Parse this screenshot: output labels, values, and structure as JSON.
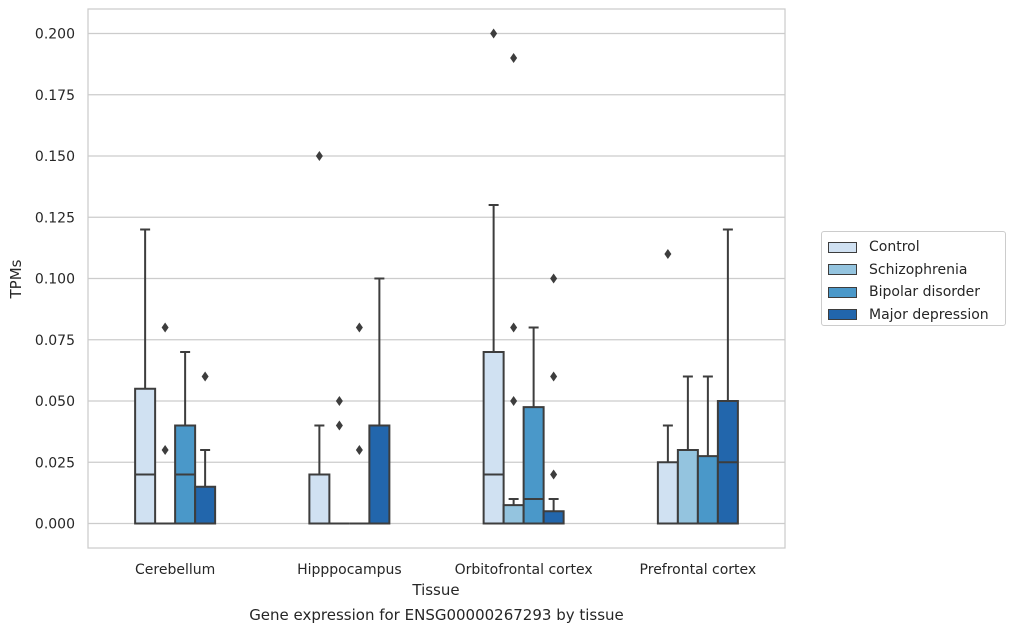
{
  "chart_data": {
    "type": "boxplot",
    "title": "Gene expression for ENSG00000267293 by tissue",
    "xlabel": "Tissue",
    "ylabel": "TPMs",
    "ylim": [
      -0.01,
      0.21
    ],
    "yticks": [
      "0.000",
      "0.025",
      "0.050",
      "0.075",
      "0.100",
      "0.125",
      "0.150",
      "0.175",
      "0.200"
    ],
    "grid": true,
    "legend_position": "right",
    "categories": [
      "Cerebellum",
      "Hipppocampus",
      "Orbitofrontal cortex",
      "Prefrontal cortex"
    ],
    "series": [
      {
        "name": "Control",
        "color": "#d0e1f2",
        "boxes": [
          {
            "q1": 0.0,
            "median": 0.02,
            "q3": 0.055,
            "whisker_low": 0.0,
            "whisker_high": 0.12,
            "outliers": []
          },
          {
            "q1": 0.0,
            "median": 0.0,
            "q3": 0.02,
            "whisker_low": 0.0,
            "whisker_high": 0.04,
            "outliers": [
              0.15
            ]
          },
          {
            "q1": 0.0,
            "median": 0.02,
            "q3": 0.07,
            "whisker_low": 0.0,
            "whisker_high": 0.13,
            "outliers": [
              0.2
            ]
          },
          {
            "q1": 0.0,
            "median": 0.0,
            "q3": 0.025,
            "whisker_low": 0.0,
            "whisker_high": 0.04,
            "outliers": [
              0.11
            ]
          }
        ]
      },
      {
        "name": "Schizophrenia",
        "color": "#94c4df",
        "boxes": [
          {
            "q1": 0.0,
            "median": 0.0,
            "q3": 0.0,
            "whisker_low": 0.0,
            "whisker_high": 0.0,
            "outliers": [
              0.03,
              0.08
            ]
          },
          {
            "q1": 0.0,
            "median": 0.0,
            "q3": 0.0,
            "whisker_low": 0.0,
            "whisker_high": 0.0,
            "outliers": [
              0.04,
              0.05
            ]
          },
          {
            "q1": 0.0,
            "median": 0.0,
            "q3": 0.0075,
            "whisker_low": 0.0,
            "whisker_high": 0.01,
            "outliers": [
              0.05,
              0.08,
              0.19
            ]
          },
          {
            "q1": 0.0,
            "median": 0.0,
            "q3": 0.03,
            "whisker_low": 0.0,
            "whisker_high": 0.06,
            "outliers": []
          }
        ]
      },
      {
        "name": "Bipolar disorder",
        "color": "#4a98c9",
        "boxes": [
          {
            "q1": 0.0,
            "median": 0.02,
            "q3": 0.04,
            "whisker_low": 0.0,
            "whisker_high": 0.07,
            "outliers": []
          },
          {
            "q1": 0.0,
            "median": 0.0,
            "q3": 0.0,
            "whisker_low": 0.0,
            "whisker_high": 0.0,
            "outliers": [
              0.03,
              0.08
            ]
          },
          {
            "q1": 0.0,
            "median": 0.01,
            "q3": 0.0475,
            "whisker_low": 0.0,
            "whisker_high": 0.08,
            "outliers": []
          },
          {
            "q1": 0.0,
            "median": 0.0,
            "q3": 0.0275,
            "whisker_low": 0.0,
            "whisker_high": 0.06,
            "outliers": []
          }
        ]
      },
      {
        "name": "Major depression",
        "color": "#2266ac",
        "boxes": [
          {
            "q1": 0.0,
            "median": 0.0,
            "q3": 0.015,
            "whisker_low": 0.0,
            "whisker_high": 0.03,
            "outliers": [
              0.06
            ]
          },
          {
            "q1": 0.0,
            "median": 0.0,
            "q3": 0.04,
            "whisker_low": 0.0,
            "whisker_high": 0.1,
            "outliers": []
          },
          {
            "q1": 0.0,
            "median": 0.0,
            "q3": 0.005,
            "whisker_low": 0.0,
            "whisker_high": 0.01,
            "outliers": [
              0.02,
              0.06,
              0.1
            ]
          },
          {
            "q1": 0.0,
            "median": 0.025,
            "q3": 0.05,
            "whisker_low": 0.0,
            "whisker_high": 0.12,
            "outliers": []
          }
        ]
      }
    ]
  }
}
